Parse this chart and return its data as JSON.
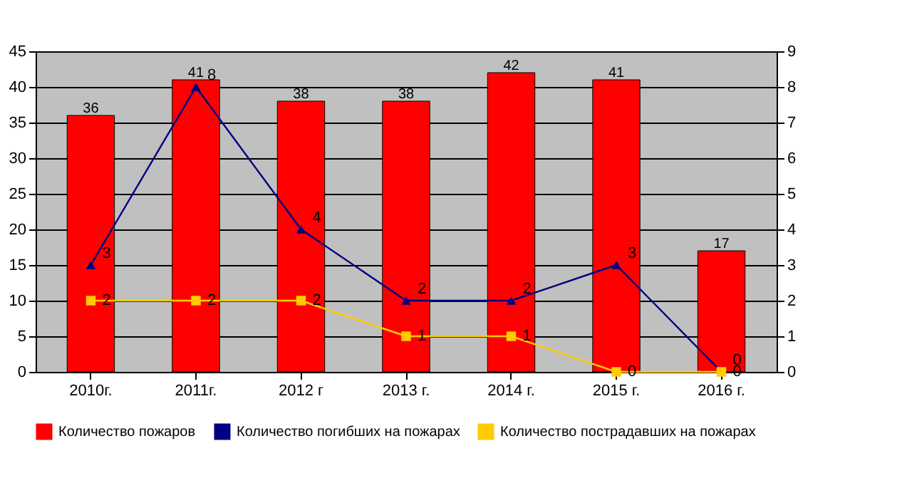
{
  "chart_data": {
    "type": "bar",
    "categories": [
      "2010г.",
      "2011г.",
      "2012 г",
      "2013 г.",
      "2014 г.",
      "2015 г.",
      "2016 г."
    ],
    "series": [
      {
        "name": "Количество пожаров",
        "color": "#ff0000",
        "values": [
          36,
          41,
          38,
          38,
          42,
          41,
          17
        ]
      },
      {
        "name": "Количество погибших на пожарах",
        "type": "line",
        "axis": "y2",
        "marker": "triangle",
        "color": "#000080",
        "values": [
          3,
          8,
          4,
          2,
          2,
          3,
          0
        ]
      },
      {
        "name": "Количество пострадавших на пожарах",
        "type": "line",
        "axis": "y2",
        "marker": "square",
        "color": "#ffcc00",
        "values": [
          2,
          2,
          2,
          1,
          1,
          0,
          0
        ]
      }
    ],
    "ylim": [
      0,
      45
    ],
    "yticks": [
      0,
      5,
      10,
      15,
      20,
      25,
      30,
      35,
      40,
      45
    ],
    "y2lim": [
      0,
      9
    ],
    "y2ticks": [
      0,
      1,
      2,
      3,
      4,
      5,
      6,
      7,
      8,
      9
    ],
    "grid": "y",
    "legend": "bottom",
    "data_labels": true
  }
}
